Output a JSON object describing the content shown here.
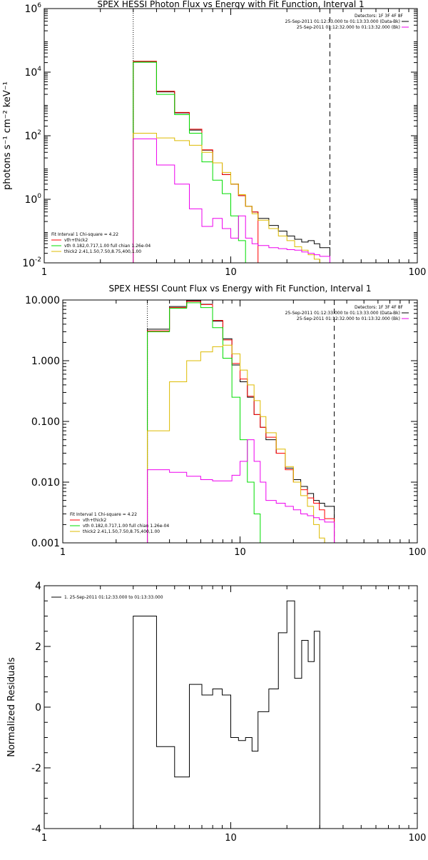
{
  "colors": {
    "black": "#000000",
    "red": "#ff0000",
    "green": "#00dd00",
    "yellow": "#ddbb00",
    "magenta": "#ee00ee",
    "axis": "#000000"
  },
  "chart_data": [
    {
      "type": "line",
      "title": "SPEX HESSI Photon Flux vs Energy with Fit Function, Interval 1",
      "xlabel": "",
      "ylabel": "photons s⁻¹ cm⁻² keV⁻¹",
      "xscale": "log",
      "yscale": "log",
      "xlim": [
        1,
        100
      ],
      "ylim": [
        0.01,
        1000000
      ],
      "x_ticks": [
        1,
        10,
        100
      ],
      "x_tick_labels": [
        "1",
        "10",
        "100"
      ],
      "y_ticks": [
        0.01,
        1,
        100,
        10000,
        1000000
      ],
      "y_tick_labels": [
        {
          "base": "10",
          "exp": "-2"
        },
        {
          "base": "10",
          "exp": "0"
        },
        {
          "base": "10",
          "exp": "2"
        },
        {
          "base": "10",
          "exp": "4"
        },
        {
          "base": "10",
          "exp": "6"
        }
      ],
      "vlines": [
        {
          "x": 3,
          "style": "dotted"
        },
        {
          "x": 34,
          "style": "dashed"
        }
      ],
      "bin_edges": [
        3,
        4,
        5,
        6,
        7,
        8,
        9,
        10,
        11,
        12,
        13,
        14,
        16,
        18,
        20,
        22,
        24,
        26,
        28,
        30,
        34
      ],
      "series": [
        {
          "name": "25-Sep-2011 01:12:33.000 to 01:13:33.000 (Data-Bk)",
          "color": "black",
          "values": [
            21000,
            2400,
            520,
            150,
            35,
            14,
            6,
            3,
            1.3,
            0.6,
            0.4,
            0.25,
            0.15,
            0.1,
            0.07,
            0.055,
            0.045,
            0.05,
            0.04,
            0.03
          ]
        },
        {
          "name": "vth+thick2",
          "color": "red",
          "values": [
            22000,
            2500,
            540,
            160,
            36,
            14,
            6,
            3,
            1.3,
            0.6,
            0.4
          ]
        },
        {
          "name": "vth 0.182,0.717,1.00 full chian 1.26e-04",
          "color": "green",
          "values": [
            20500,
            2000,
            460,
            120,
            15,
            4,
            1.5,
            0.3,
            0.05,
            0.01
          ]
        },
        {
          "name": "thick2 2.41,1.50,7.50,8.75,400,1.00",
          "color": "yellow",
          "values": [
            120,
            85,
            70,
            50,
            30,
            14,
            7,
            3,
            1.4,
            0.6,
            0.35,
            0.22,
            0.12,
            0.07,
            0.05,
            0.032,
            0.025,
            0.018,
            0.013,
            0.008
          ]
        },
        {
          "name": "25-Sep-2011 01:12:32.000 to 01:13:32.000 (Bk)",
          "color": "magenta",
          "values": [
            80,
            12,
            3,
            0.5,
            0.14,
            0.25,
            0.12,
            0.06,
            0.3,
            0.06,
            0.04,
            0.035,
            0.03,
            0.028,
            0.026,
            0.025,
            0.022,
            0.02,
            0.018,
            0.016
          ]
        }
      ],
      "legend_right": {
        "header": "Detectors: 1F 3F 4F 8F",
        "entries": [
          {
            "text": "25-Sep-2011 01:12:33.000 to 01:13:33.000 (Data-Bk)",
            "color": "black"
          },
          {
            "text": "25-Sep-2011 01:12:32.000 to 01:13:32.000 (Bk)",
            "color": "magenta"
          }
        ]
      },
      "legend_left": {
        "header": "Fit Interval  1    Chi-square = 4.22",
        "entries": [
          {
            "text": "vth+thick2",
            "color": "red"
          },
          {
            "text": "vth 0.182,0.717,1.00  full chian 1.26e-04",
            "color": "green"
          },
          {
            "text": "thick2 2.41,1.50,7.50,8.75,400,1.00",
            "color": "yellow"
          }
        ]
      }
    },
    {
      "type": "line",
      "title": "SPEX HESSI Count Flux vs Energy with Fit Function, Interval 1",
      "xlabel": "",
      "ylabel": "",
      "xscale": "log",
      "yscale": "log",
      "xlim": [
        1,
        100
      ],
      "ylim": [
        0.001,
        10
      ],
      "x_ticks": [
        1,
        10,
        100
      ],
      "x_tick_labels": [
        "1",
        "10",
        "100"
      ],
      "y_ticks": [
        0.001,
        0.01,
        0.1,
        1,
        10
      ],
      "y_tick_labels": [
        {
          "base": "0.001"
        },
        {
          "base": "0.010"
        },
        {
          "base": "0.100"
        },
        {
          "base": "1.000"
        },
        {
          "base": "10.000"
        }
      ],
      "vlines": [
        {
          "x": 3,
          "style": "dotted"
        },
        {
          "x": 34,
          "style": "dashed"
        }
      ],
      "bin_edges": [
        3,
        4,
        5,
        6,
        7,
        8,
        9,
        10,
        11,
        12,
        13,
        14,
        16,
        18,
        20,
        22,
        24,
        26,
        28,
        30,
        34
      ],
      "series": [
        {
          "name": "25-Sep-2011 01:12:33.000 to 01:13:33.000 (Data-Bk)",
          "color": "black",
          "values": [
            3.3,
            7.8,
            9.7,
            8.5,
            4.5,
            2.3,
            0.85,
            0.45,
            0.25,
            0.13,
            0.08,
            0.05,
            0.03,
            0.017,
            0.011,
            0.0085,
            0.0065,
            0.005,
            0.0045,
            0.004
          ]
        },
        {
          "name": "vth+thick2",
          "color": "red",
          "values": [
            3.1,
            7.5,
            9.5,
            8.4,
            4.6,
            2.2,
            0.9,
            0.5,
            0.26,
            0.13,
            0.08,
            0.055,
            0.03,
            0.016,
            0.01,
            0.0075,
            0.0055,
            0.0045,
            0.0035,
            0.0025
          ]
        },
        {
          "name": "vth 0.182,0.717,1.00 full chian 1.26e-04",
          "color": "green",
          "values": [
            3.0,
            7.3,
            9.0,
            7.5,
            3.5,
            1.1,
            0.25,
            0.05,
            0.01,
            0.003,
            0.001
          ]
        },
        {
          "name": "thick2 2.41,1.50,7.50,8.75,400,1.00",
          "color": "yellow",
          "values": [
            0.07,
            0.45,
            1.0,
            1.4,
            1.7,
            1.8,
            1.3,
            0.7,
            0.4,
            0.22,
            0.12,
            0.065,
            0.035,
            0.018,
            0.01,
            0.006,
            0.004,
            0.002,
            0.0012,
            0.0007
          ]
        },
        {
          "name": "25-Sep-2011 01:12:32.000 to 01:13:32.000 (Bk)",
          "color": "magenta",
          "values": [
            0.016,
            0.0145,
            0.0125,
            0.011,
            0.0105,
            0.0105,
            0.013,
            0.022,
            0.05,
            0.022,
            0.01,
            0.005,
            0.0045,
            0.004,
            0.0035,
            0.003,
            0.0028,
            0.0026,
            0.0024,
            0.0022
          ]
        }
      ],
      "legend_right": {
        "header": "Detectors: 1F 3F 4F 8F",
        "entries": [
          {
            "text": "25-Sep-2011 01:12:33.000 to 01:13:33.000 (Data-Bk)",
            "color": "black"
          },
          {
            "text": "25-Sep-2011 01:12:32.000 to 01:13:32.000 (Bk)",
            "color": "magenta"
          }
        ]
      },
      "legend_left": {
        "header": "Fit Interval  1    Chi-square = 4.22",
        "entries": [
          {
            "text": "vth+thick2",
            "color": "red"
          },
          {
            "text": "vth 0.182,0.717,1.00  full chian 1.26e-04",
            "color": "green"
          },
          {
            "text": "thick2 2.41,1.50,7.50,8.75,400,1.00",
            "color": "yellow"
          }
        ]
      }
    },
    {
      "type": "line",
      "title": "",
      "xlabel": "",
      "ylabel": "Normalized Residuals",
      "xscale": "log",
      "yscale": "linear",
      "xlim": [
        1,
        100
      ],
      "ylim": [
        -4,
        4
      ],
      "x_ticks": [
        1,
        10,
        100
      ],
      "x_tick_labels": [
        "1",
        "10",
        "100"
      ],
      "y_ticks": [
        -4,
        -2,
        0,
        2,
        4
      ],
      "y_tick_labels": [
        {
          "base": "-4"
        },
        {
          "base": "-2"
        },
        {
          "base": "0"
        },
        {
          "base": "2"
        },
        {
          "base": "4"
        }
      ],
      "vlines": [],
      "bin_edges": [
        3,
        4,
        5,
        6,
        7,
        8,
        9,
        10,
        11,
        12,
        13,
        14,
        16,
        18,
        20,
        22,
        24,
        26,
        28,
        30,
        34
      ],
      "series": [
        {
          "name": "1. 25-Sep-2011 01:12:33.000 to 01:13:33.000",
          "color": "black",
          "values": [
            3.0,
            -1.3,
            -2.3,
            0.75,
            0.4,
            0.6,
            0.4,
            -1.0,
            -1.1,
            -1.0,
            -1.45,
            -0.15,
            0.6,
            2.45,
            3.5,
            0.95,
            2.2,
            1.5,
            2.5
          ]
        }
      ],
      "legend_left": {
        "header": "",
        "entries": [
          {
            "text": "1. 25-Sep-2011 01:12:33.000 to 01:13:33.000",
            "color": "black"
          }
        ]
      }
    }
  ]
}
